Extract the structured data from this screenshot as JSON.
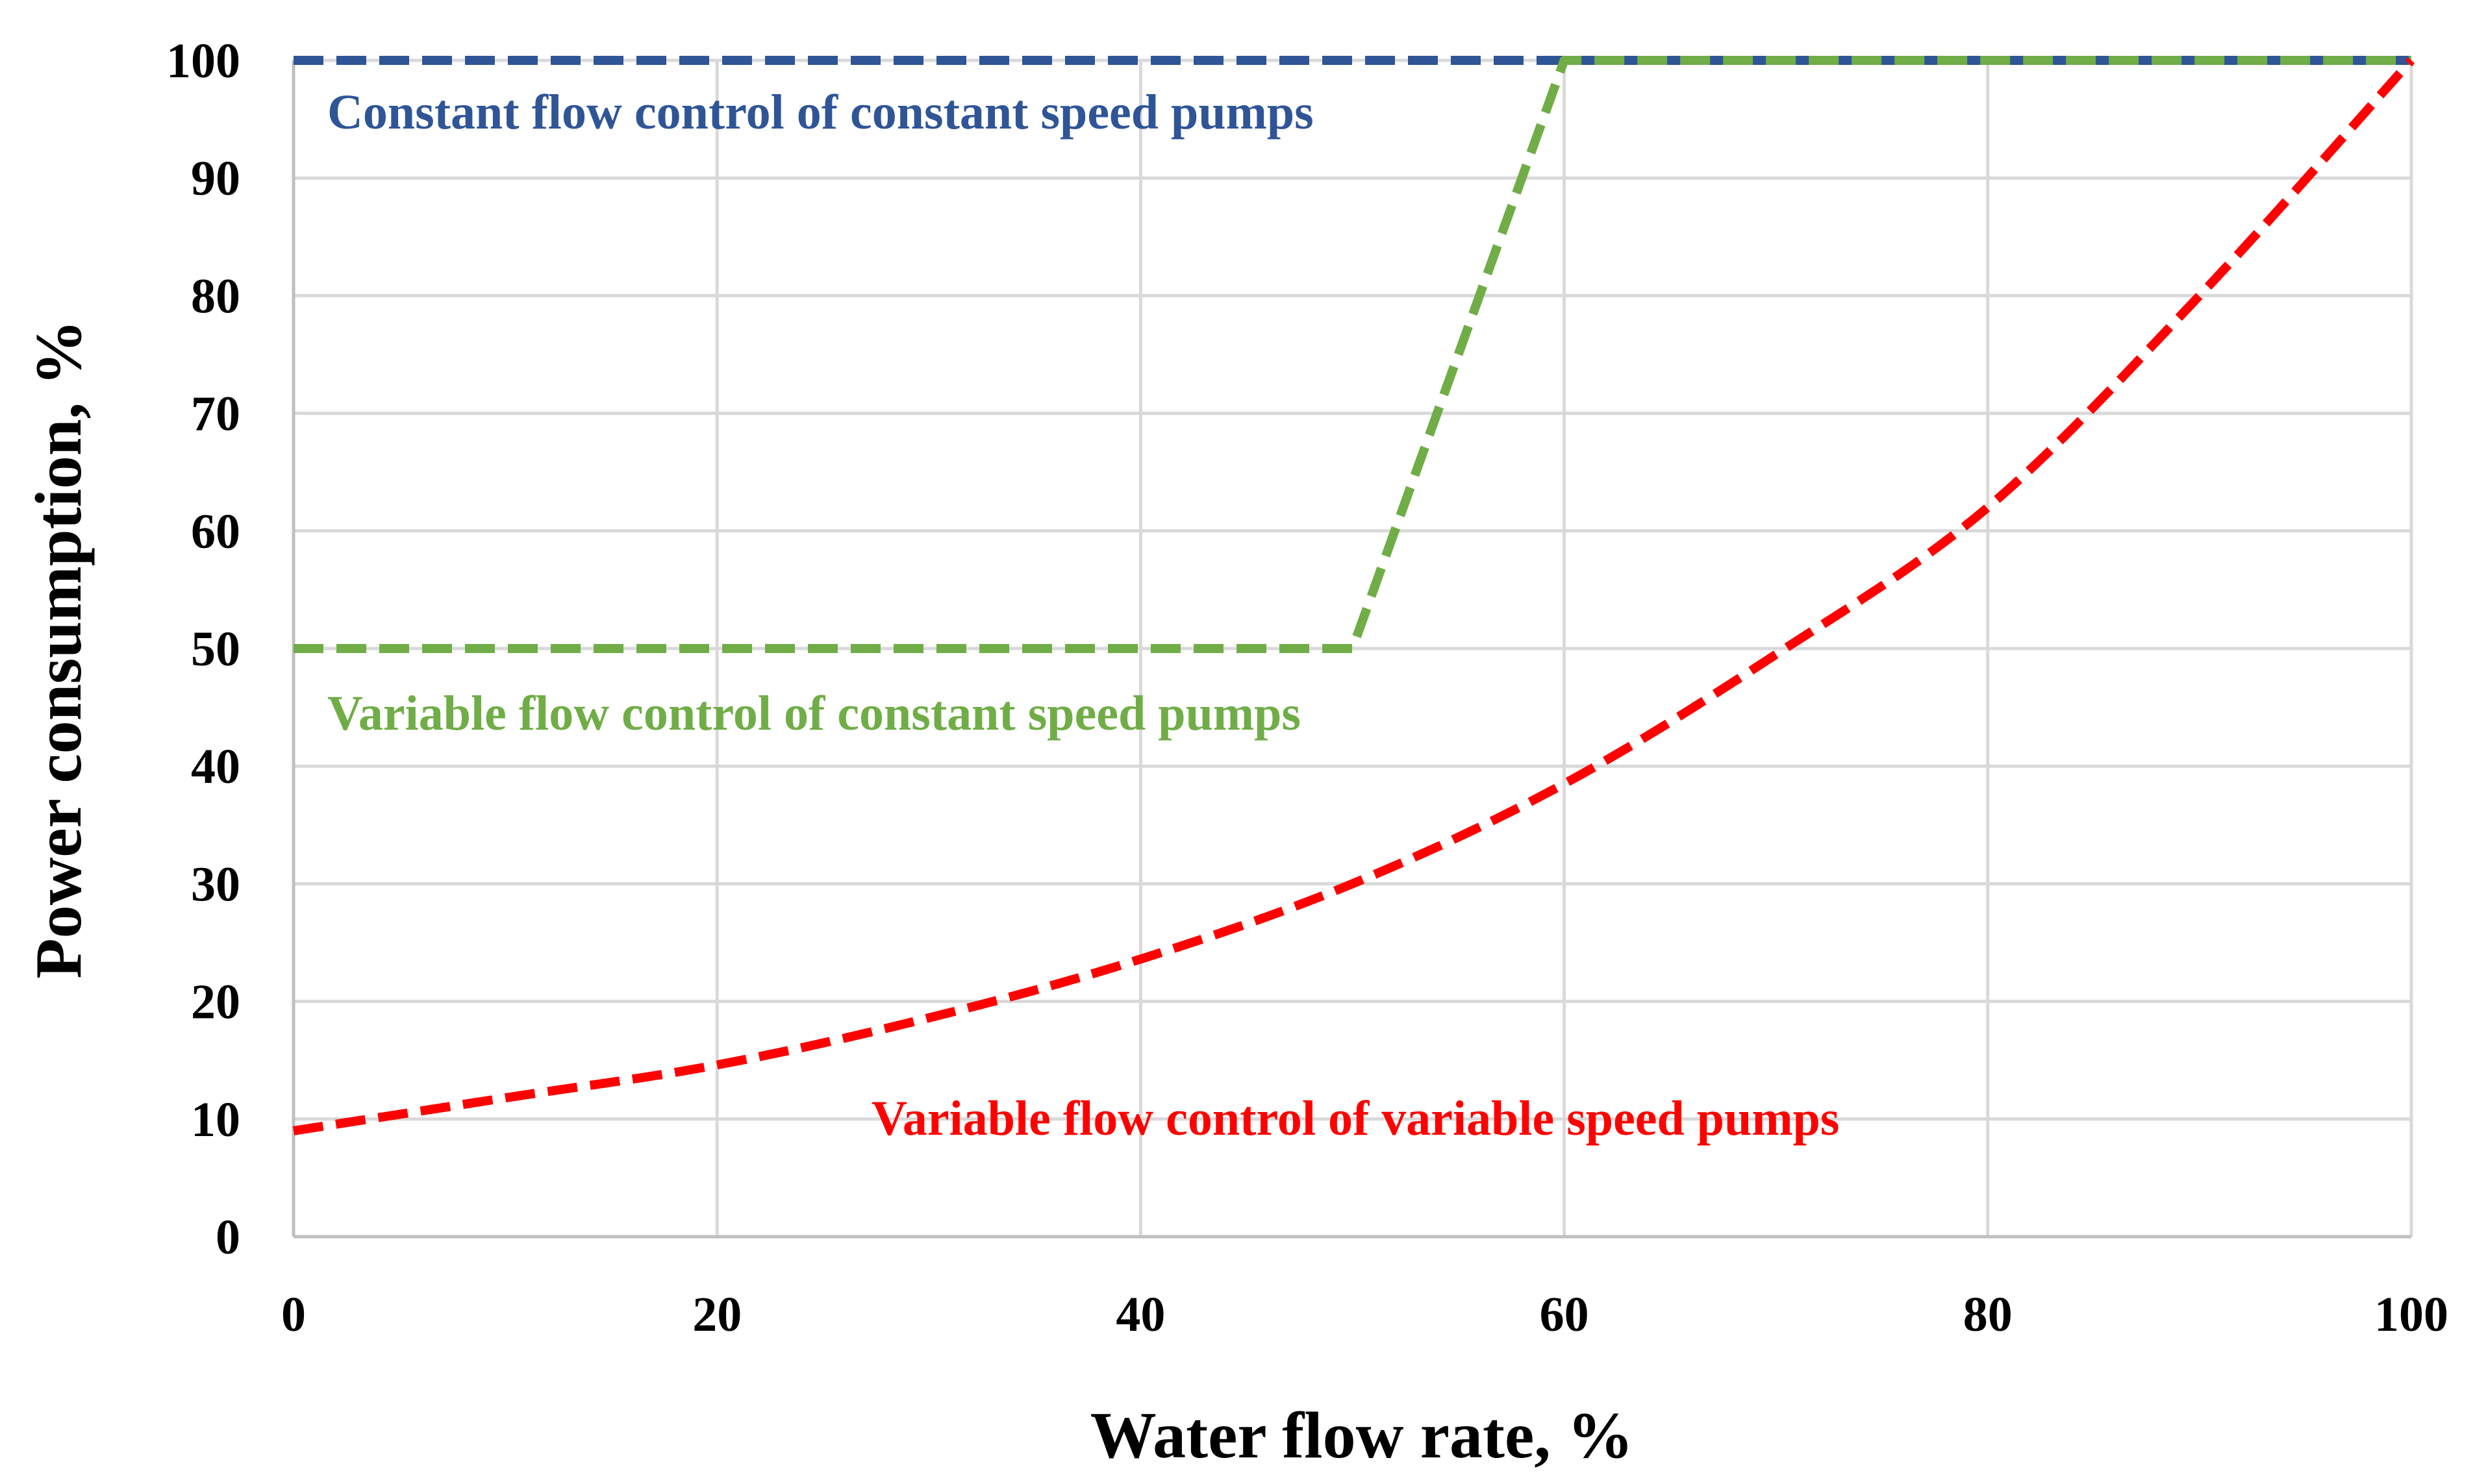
{
  "chart_data": {
    "type": "line",
    "title": "",
    "xlabel": "Water flow rate, %",
    "ylabel": "Power consumption, %",
    "xlim": [
      0,
      100
    ],
    "ylim": [
      0,
      100
    ],
    "x_ticks": [
      "0",
      "20",
      "40",
      "60",
      "80",
      "100"
    ],
    "y_ticks": [
      "0",
      "10",
      "20",
      "30",
      "40",
      "50",
      "60",
      "70",
      "80",
      "90",
      "100"
    ],
    "grid": true,
    "legend": "none",
    "series": [
      {
        "name": "Constant flow control of constant speed pumps",
        "color": "#2f5597",
        "x": [
          0,
          100
        ],
        "y": [
          100,
          100
        ]
      },
      {
        "name": "Variable flow control of constant speed pumps",
        "color": "#70ad47",
        "x": [
          0,
          50,
          60,
          100
        ],
        "y": [
          50,
          50,
          100,
          100
        ]
      },
      {
        "name": "Variable flow control of variable speed pumps",
        "color": "#ff0000",
        "x": [
          0,
          10,
          20,
          30,
          40,
          50,
          60,
          70,
          80,
          90,
          100
        ],
        "y": [
          9,
          11.8,
          14.6,
          18.6,
          23.6,
          30,
          38.5,
          49.5,
          62,
          80,
          100
        ]
      }
    ],
    "annotations": [
      {
        "text": "Constant flow control of constant speed pumps",
        "color": "#2f5597"
      },
      {
        "text": "Variable flow control of constant speed pumps",
        "color": "#70ad47"
      },
      {
        "text": "Variable flow control of variable speed pumps",
        "color": "#ff0000"
      }
    ]
  }
}
